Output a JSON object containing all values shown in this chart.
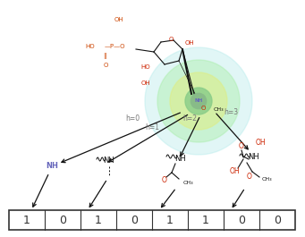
{
  "background_color": "#ffffff",
  "binary_values": [
    1,
    0,
    1,
    0,
    1,
    1,
    0,
    0
  ],
  "hop_labels": [
    "h=0",
    "h=1",
    "h=2",
    "h=3"
  ],
  "circle_colors": [
    "#aae8e8",
    "#aaeeaa",
    "#ddee88",
    "#88cc88"
  ],
  "circle_alphas": [
    0.35,
    0.45,
    0.6,
    0.8
  ],
  "center_circle_color": "#88bb88",
  "phosphate_color": "#cc4400",
  "red_atoms_color": "#cc2200",
  "nh_color": "#6666bb",
  "black_color": "#111111",
  "gray_color": "#777777",
  "arrow_color": "#111111",
  "box_color": "#333333",
  "number_color": "#333333",
  "fig_width": 3.41,
  "fig_height": 2.65,
  "dpi": 100
}
